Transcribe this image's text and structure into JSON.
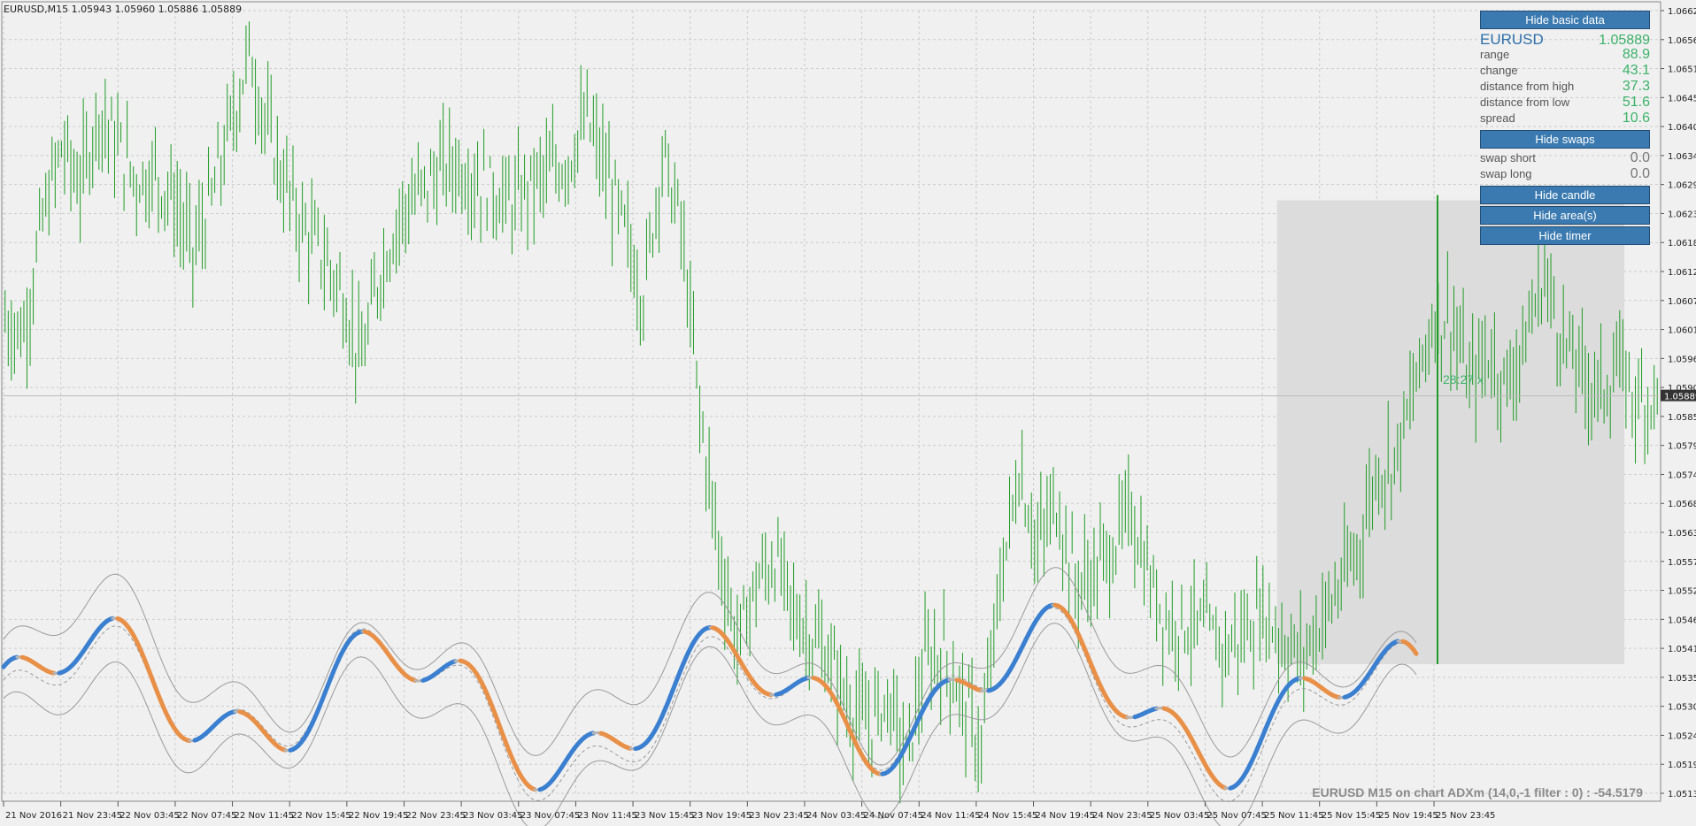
{
  "header": {
    "symbol_info": "EURUSD,M15  1.05943 1.05960 1.05886 1.05889"
  },
  "panel": {
    "hide_basic_label": "Hide basic data",
    "symbol": "EURUSD",
    "price": "1.05889",
    "rows": [
      {
        "key": "range",
        "value": "88.9"
      },
      {
        "key": "change",
        "value": "43.1"
      },
      {
        "key": "distance from high",
        "value": "37.3"
      },
      {
        "key": "distance from low",
        "value": "51.6"
      },
      {
        "key": "spread",
        "value": "10.6"
      }
    ],
    "hide_swaps_label": "Hide swaps",
    "swaps": [
      {
        "key": "swap short",
        "value": "0.0"
      },
      {
        "key": "swap long",
        "value": "0.0"
      }
    ],
    "hide_candle_label": "Hide candle",
    "hide_areas_label": "Hide area(s)",
    "hide_timer_label": "Hide timer"
  },
  "timer_text": "28:27 x",
  "indicator_label": "EURUSD M15 on chart ADXm (14,0,-1 filter : 0) : -54.5179",
  "colors": {
    "bar": "#1f9c25",
    "up": "#3a7fd0",
    "down": "#e89048",
    "neutral": "#b5b5b5",
    "band": "#9a9a9a",
    "area": "#dcdcdc",
    "grid": "#cccccc"
  },
  "chart_data": {
    "type": "bar",
    "symbol": "EURUSD",
    "timeframe": "M15",
    "ylim": [
      1.0513,
      1.0662
    ],
    "yticks": [
      "1.06620",
      "1.06565",
      "1.06510",
      "1.06455",
      "1.06400",
      "1.06345",
      "1.06290",
      "1.06235",
      "1.06180",
      "1.06125",
      "1.06070",
      "1.06015",
      "1.05960",
      "1.05905",
      "1.05850",
      "1.05795",
      "1.05740",
      "1.05685",
      "1.05630",
      "1.05575",
      "1.05520",
      "1.05465",
      "1.05410",
      "1.05355",
      "1.05300",
      "1.05245",
      "1.05190",
      "1.05135"
    ],
    "current_price": "1.05889",
    "xticks": [
      "21 Nov 2016",
      "21 Nov 23:45",
      "22 Nov 03:45",
      "22 Nov 07:45",
      "22 Nov 11:45",
      "22 Nov 15:45",
      "22 Nov 19:45",
      "22 Nov 23:45",
      "23 Nov 03:45",
      "23 Nov 07:45",
      "23 Nov 11:45",
      "23 Nov 15:45",
      "23 Nov 19:45",
      "23 Nov 23:45",
      "24 Nov 03:45",
      "24 Nov 07:45",
      "24 Nov 11:45",
      "24 Nov 15:45",
      "24 Nov 19:45",
      "24 Nov 23:45",
      "25 Nov 03:45",
      "25 Nov 07:45",
      "25 Nov 11:45",
      "25 Nov 15:45",
      "25 Nov 19:45",
      "25 Nov 23:45"
    ],
    "price_path": [
      [
        0,
        1.0603
      ],
      [
        6,
        1.0601
      ],
      [
        12,
        1.0622
      ],
      [
        18,
        1.0636
      ],
      [
        24,
        1.0629
      ],
      [
        30,
        1.0643
      ],
      [
        36,
        1.0636
      ],
      [
        42,
        1.063
      ],
      [
        48,
        1.0631
      ],
      [
        54,
        1.0626
      ],
      [
        60,
        1.0616
      ],
      [
        66,
        1.0626
      ],
      [
        72,
        1.064
      ],
      [
        78,
        1.0654
      ],
      [
        84,
        1.0639
      ],
      [
        90,
        1.0628
      ],
      [
        96,
        1.062
      ],
      [
        102,
        1.0615
      ],
      [
        108,
        1.0608
      ],
      [
        114,
        1.0595
      ],
      [
        120,
        1.0613
      ],
      [
        126,
        1.0623
      ],
      [
        132,
        1.0627
      ],
      [
        138,
        1.0631
      ],
      [
        144,
        1.0633
      ],
      [
        150,
        1.063
      ],
      [
        156,
        1.0628
      ],
      [
        162,
        1.0625
      ],
      [
        168,
        1.0629
      ],
      [
        174,
        1.0631
      ],
      [
        180,
        1.0634
      ],
      [
        186,
        1.0641
      ],
      [
        192,
        1.0631
      ],
      [
        198,
        1.062
      ],
      [
        204,
        1.0608
      ],
      [
        210,
        1.0635
      ],
      [
        216,
        1.0621
      ],
      [
        222,
        1.0586
      ],
      [
        228,
        1.056
      ],
      [
        234,
        1.0542
      ],
      [
        240,
        1.0553
      ],
      [
        246,
        1.0558
      ],
      [
        252,
        1.0548
      ],
      [
        258,
        1.0543
      ],
      [
        264,
        1.0538
      ],
      [
        270,
        1.053
      ],
      [
        276,
        1.0526
      ],
      [
        282,
        1.0532
      ],
      [
        288,
        1.052
      ],
      [
        294,
        1.0538
      ],
      [
        300,
        1.054
      ],
      [
        306,
        1.0531
      ],
      [
        312,
        1.0522
      ],
      [
        318,
        1.0553
      ],
      [
        324,
        1.0575
      ],
      [
        330,
        1.056
      ],
      [
        336,
        1.0569
      ],
      [
        342,
        1.0553
      ],
      [
        348,
        1.0555
      ],
      [
        354,
        1.056
      ],
      [
        360,
        1.0567
      ],
      [
        366,
        1.0553
      ],
      [
        372,
        1.0546
      ],
      [
        378,
        1.0546
      ],
      [
        384,
        1.0544
      ],
      [
        390,
        1.0541
      ],
      [
        396,
        1.0544
      ],
      [
        402,
        1.0548
      ],
      [
        408,
        1.0543
      ],
      [
        414,
        1.0539
      ],
      [
        420,
        1.0546
      ],
      [
        426,
        1.0552
      ],
      [
        432,
        1.0559
      ],
      [
        438,
        1.0574
      ],
      [
        444,
        1.0577
      ],
      [
        450,
        1.0589
      ],
      [
        456,
        1.0603
      ],
      [
        462,
        1.0604
      ],
      [
        468,
        1.0591
      ],
      [
        474,
        1.0597
      ],
      [
        480,
        1.0591
      ],
      [
        486,
        1.06
      ],
      [
        492,
        1.0612
      ],
      [
        498,
        1.0599
      ],
      [
        504,
        1.0593
      ],
      [
        510,
        1.059
      ],
      [
        516,
        1.0594
      ],
      [
        522,
        1.0588
      ],
      [
        528,
        1.0589
      ]
    ],
    "bars_total": 529,
    "area_start_bar": 407,
    "area_high": 1.0626,
    "area_low": 1.0538
  }
}
